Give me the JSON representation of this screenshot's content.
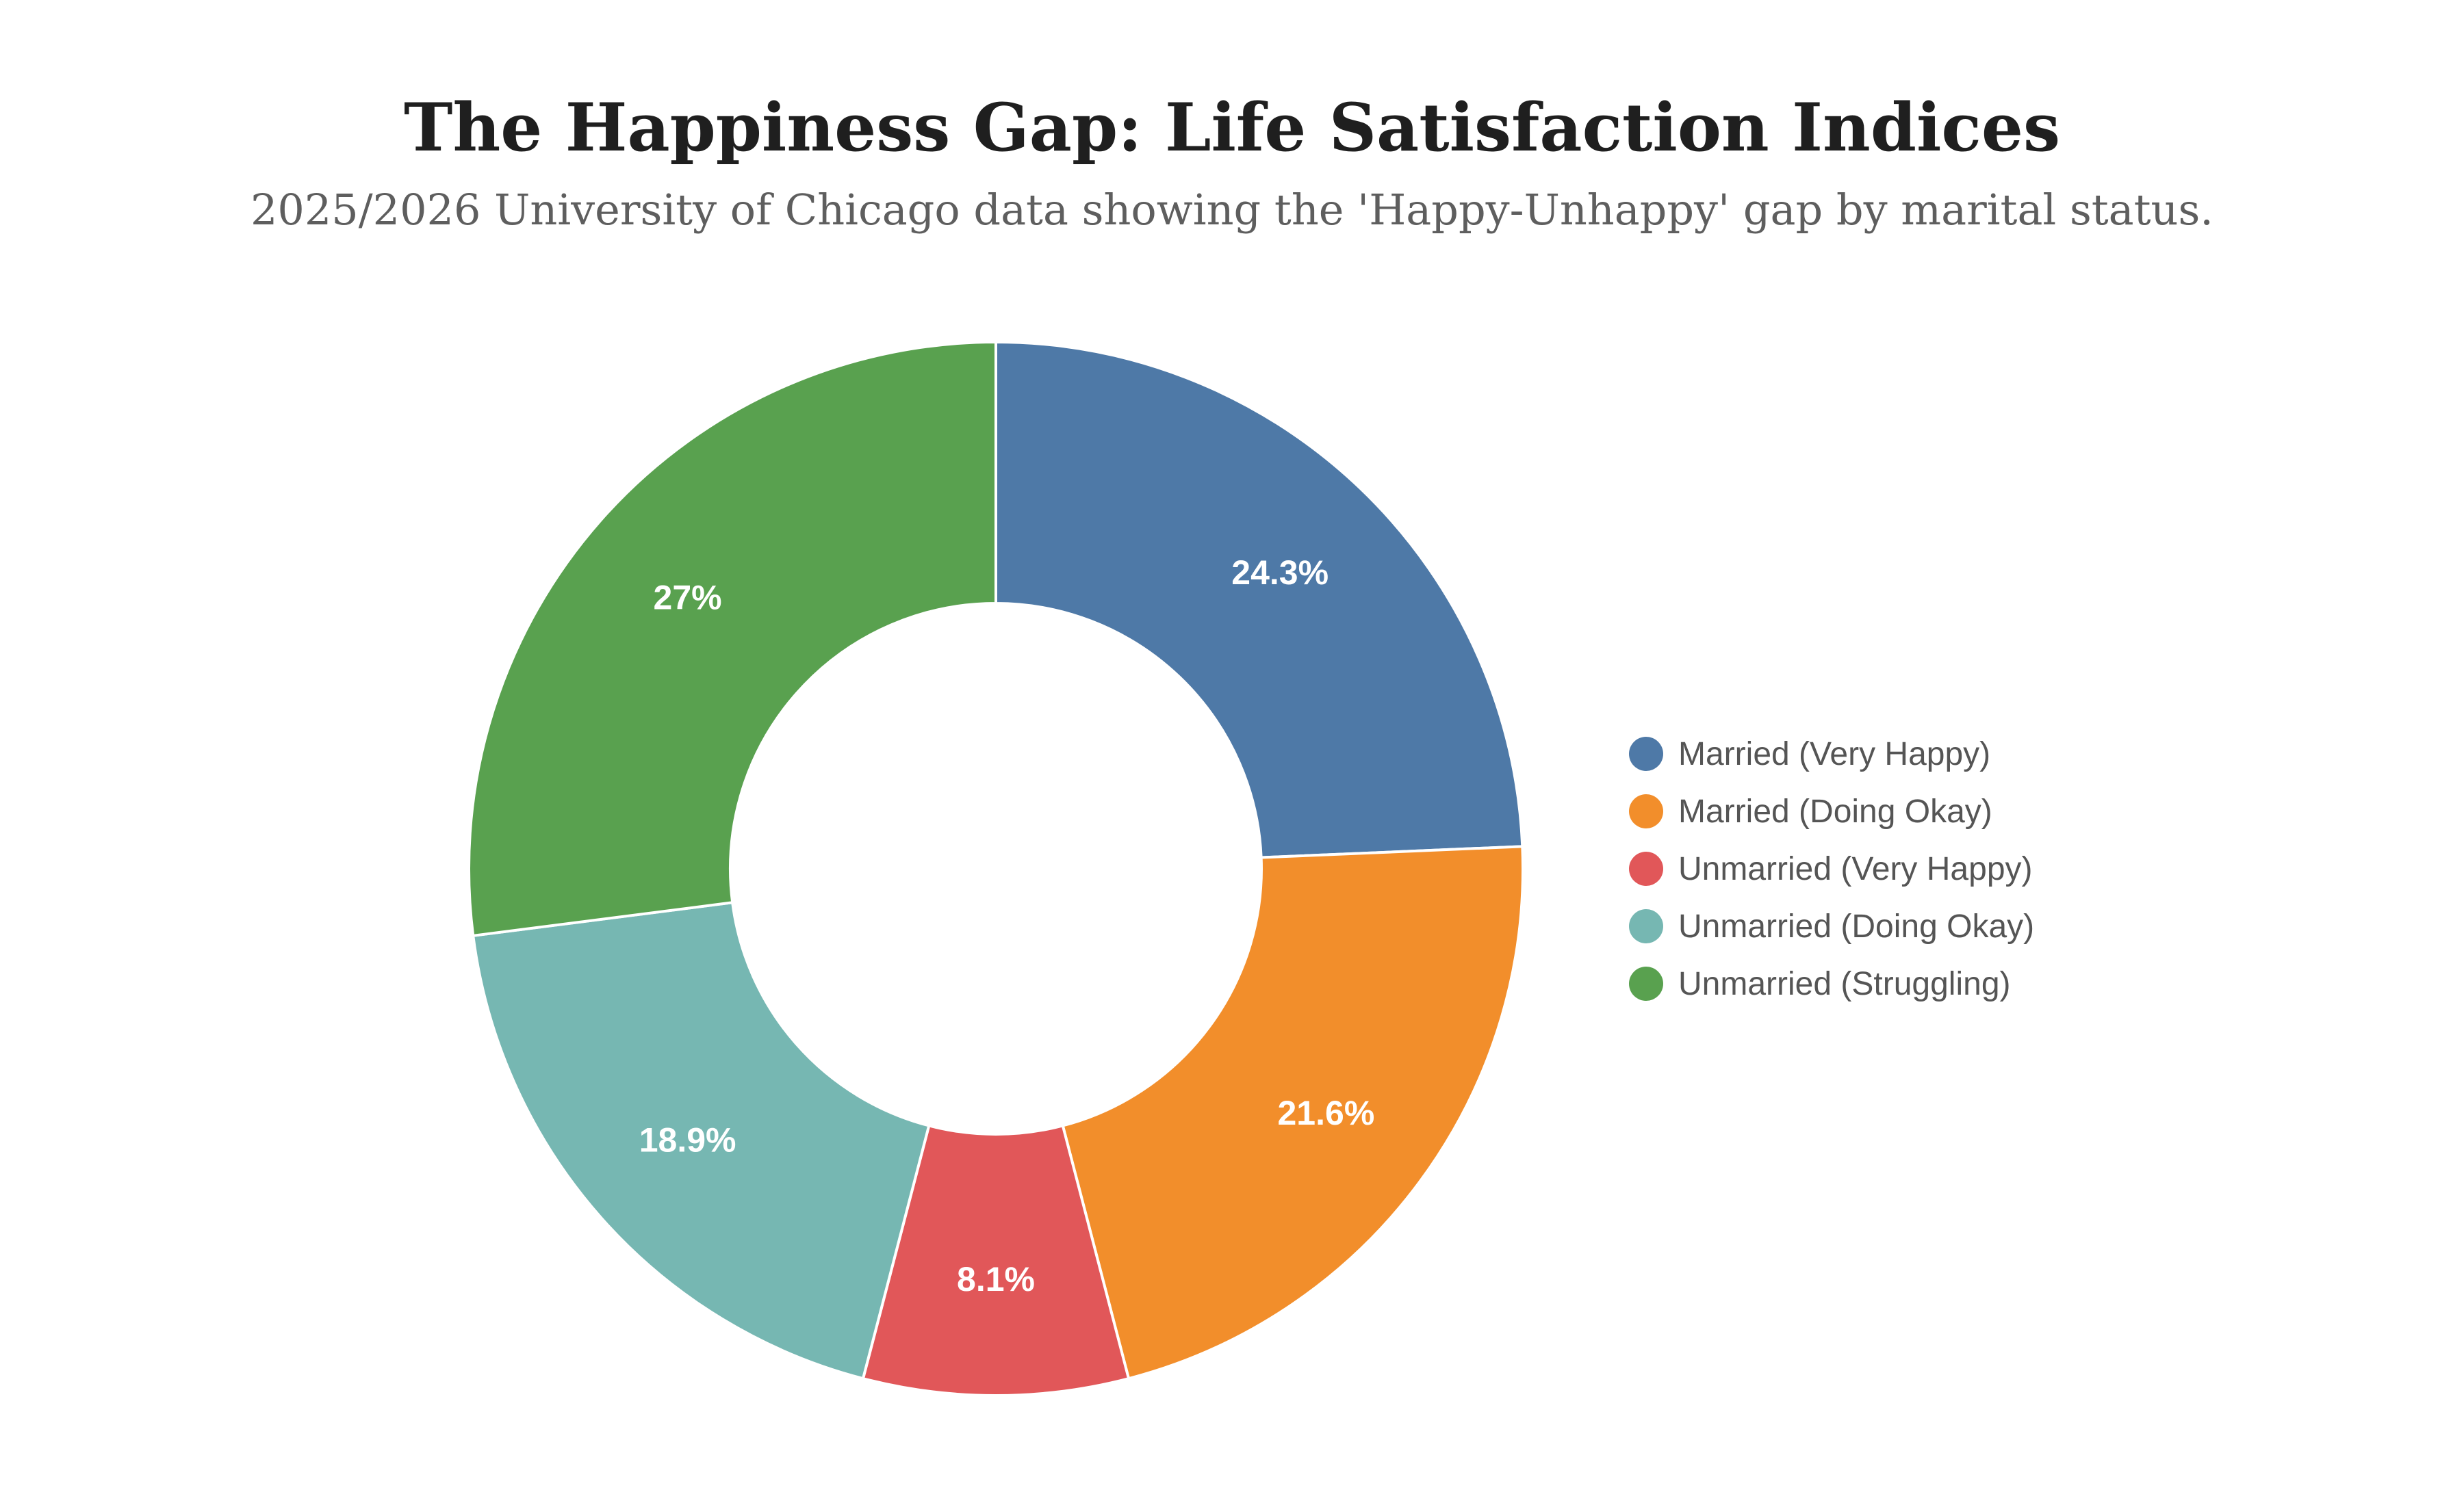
{
  "chart_data": {
    "type": "pie",
    "title": "The Happiness Gap: Life Satisfaction Indices",
    "subtitle": "2025/2026 University of Chicago data showing the 'Happy-Unhappy' gap by marital status.",
    "donut": true,
    "legend_position": "right",
    "slices": [
      {
        "name": "Married (Very Happy)",
        "value": 24.3,
        "label": "24.3%",
        "color": "#4e79a7"
      },
      {
        "name": "Married (Doing Okay)",
        "value": 21.6,
        "label": "21.6%",
        "color": "#f28e2b"
      },
      {
        "name": "Unmarried (Very Happy)",
        "value": 8.1,
        "label": "8.1%",
        "color": "#e15759"
      },
      {
        "name": "Unmarried (Doing Okay)",
        "value": 18.9,
        "label": "18.9%",
        "color": "#76b7b2"
      },
      {
        "name": "Unmarried (Struggling)",
        "value": 27,
        "label": "27%",
        "color": "#59a14f"
      }
    ]
  }
}
